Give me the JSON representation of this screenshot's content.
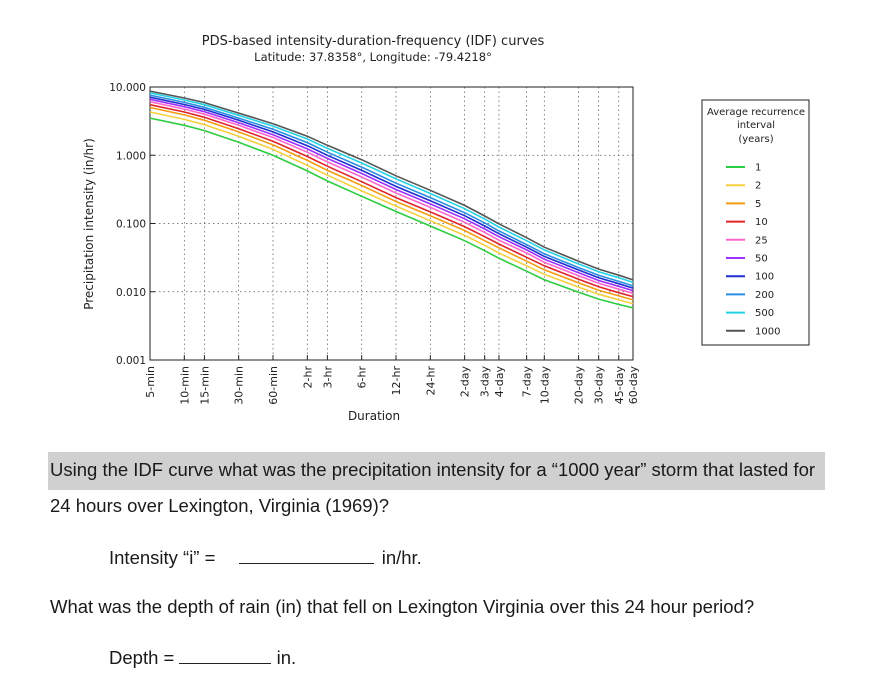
{
  "chart_data": {
    "type": "line",
    "title": "PDS-based intensity-duration-frequency (IDF) curves",
    "subtitle": "Latitude: 37.8358°, Longitude: -79.4218°",
    "xlabel": "Duration",
    "ylabel": "Precipitation intensity (in/hr)",
    "yscale": "log",
    "ylim": [
      0.001,
      10
    ],
    "yticks": [
      "10.000",
      "1.000",
      "0.100",
      "0.010",
      "0.001"
    ],
    "categories": [
      "5-min",
      "10-min",
      "15-min",
      "30-min",
      "60-min",
      "2-hr",
      "3-hr",
      "6-hr",
      "12-hr",
      "24-hr",
      "2-day",
      "3-day",
      "4-day",
      "7-day",
      "10-day",
      "20-day",
      "30-day",
      "45-day",
      "60-day"
    ],
    "grid": true,
    "legend": {
      "title": "Average recurrence interval (years)",
      "placement": "right"
    },
    "series": [
      {
        "name": "1",
        "color": "#2ecc40",
        "values": [
          3.5,
          2.75,
          2.3,
          1.55,
          1.0,
          0.59,
          0.42,
          0.25,
          0.15,
          0.092,
          0.056,
          0.04,
          0.031,
          0.02,
          0.015,
          0.0098,
          0.0078,
          0.0065,
          0.0058
        ]
      },
      {
        "name": "2",
        "color": "#f4d03f",
        "values": [
          4.3,
          3.35,
          2.8,
          1.9,
          1.22,
          0.71,
          0.51,
          0.3,
          0.18,
          0.11,
          0.067,
          0.048,
          0.037,
          0.024,
          0.018,
          0.0117,
          0.0092,
          0.0076,
          0.0067
        ]
      },
      {
        "name": "5",
        "color": "#f39c12",
        "values": [
          5.0,
          3.9,
          3.25,
          2.2,
          1.42,
          0.84,
          0.6,
          0.36,
          0.21,
          0.13,
          0.079,
          0.056,
          0.044,
          0.028,
          0.021,
          0.0135,
          0.0105,
          0.0087,
          0.0076
        ]
      },
      {
        "name": "10",
        "color": "#e0242c",
        "values": [
          5.5,
          4.3,
          3.6,
          2.45,
          1.6,
          0.96,
          0.69,
          0.41,
          0.24,
          0.148,
          0.09,
          0.064,
          0.05,
          0.032,
          0.024,
          0.0152,
          0.0118,
          0.0097,
          0.0085
        ]
      },
      {
        "name": "25",
        "color": "#ff66cc",
        "values": [
          6.1,
          4.75,
          4.0,
          2.75,
          1.82,
          1.11,
          0.8,
          0.48,
          0.28,
          0.172,
          0.104,
          0.074,
          0.057,
          0.037,
          0.027,
          0.0172,
          0.0133,
          0.0109,
          0.0095
        ]
      },
      {
        "name": "50",
        "color": "#9b30ff",
        "values": [
          6.6,
          5.15,
          4.35,
          3.0,
          2.0,
          1.24,
          0.9,
          0.54,
          0.315,
          0.194,
          0.117,
          0.083,
          0.064,
          0.041,
          0.03,
          0.019,
          0.0146,
          0.012,
          0.0104
        ]
      },
      {
        "name": "100",
        "color": "#1f2fd0",
        "values": [
          7.1,
          5.55,
          4.7,
          3.25,
          2.2,
          1.38,
          1.0,
          0.6,
          0.35,
          0.216,
          0.13,
          0.092,
          0.071,
          0.045,
          0.033,
          0.0208,
          0.016,
          0.0131,
          0.0113
        ]
      },
      {
        "name": "200",
        "color": "#2a8fe0",
        "values": [
          7.6,
          5.95,
          5.05,
          3.5,
          2.4,
          1.53,
          1.11,
          0.67,
          0.39,
          0.24,
          0.144,
          0.102,
          0.078,
          0.049,
          0.036,
          0.0226,
          0.0174,
          0.0142,
          0.0122
        ]
      },
      {
        "name": "500",
        "color": "#22d3e6",
        "values": [
          8.2,
          6.45,
          5.5,
          3.85,
          2.67,
          1.73,
          1.26,
          0.77,
          0.45,
          0.275,
          0.165,
          0.116,
          0.089,
          0.056,
          0.041,
          0.0255,
          0.0196,
          0.016,
          0.0137
        ]
      },
      {
        "name": "1000",
        "color": "#555555",
        "values": [
          8.7,
          6.9,
          5.9,
          4.15,
          2.9,
          1.9,
          1.4,
          0.86,
          0.5,
          0.306,
          0.184,
          0.129,
          0.099,
          0.062,
          0.045,
          0.028,
          0.0215,
          0.0175,
          0.0149
        ]
      }
    ]
  },
  "document": {
    "question1_part1": "Using the IDF curve what was the precipitation intensity for a “1000 year” storm that lasted for",
    "question1_part2": "24 hours over Lexington, Virginia (1969)?",
    "intensity_label": "Intensity “i” =",
    "intensity_unit": "in/hr.",
    "question2": "What was the depth of rain (in) that fell on Lexington Virginia over this 24 hour period?",
    "depth_label": "Depth =",
    "depth_unit": "in."
  }
}
